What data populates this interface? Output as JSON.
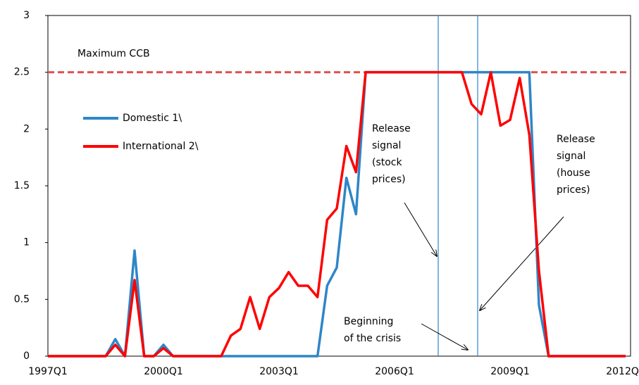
{
  "chart_data": {
    "type": "line",
    "categories": [
      "1997Q1",
      null,
      null,
      null,
      null,
      null,
      null,
      null,
      null,
      null,
      null,
      null,
      "2000Q1",
      null,
      null,
      null,
      null,
      null,
      null,
      null,
      null,
      null,
      null,
      null,
      "2003Q1",
      null,
      null,
      null,
      null,
      null,
      null,
      null,
      null,
      null,
      null,
      null,
      "2006Q1",
      null,
      null,
      null,
      null,
      null,
      null,
      null,
      null,
      null,
      null,
      null,
      "2009Q1",
      null,
      null,
      null,
      null,
      null,
      null,
      null,
      null,
      null,
      null,
      null,
      "2012Q1"
    ],
    "series": [
      {
        "name": "Domestic 1\\",
        "color": "#2e86c8",
        "values": [
          0,
          0,
          0,
          0,
          0,
          0,
          0,
          0.15,
          0,
          0.93,
          0,
          0,
          0.1,
          0,
          0,
          0,
          0,
          0,
          0,
          0,
          0,
          0,
          0,
          0,
          0,
          0,
          0,
          0,
          0,
          0.62,
          0.78,
          1.57,
          1.25,
          2.5,
          2.5,
          2.5,
          2.5,
          2.5,
          2.5,
          2.5,
          2.5,
          2.5,
          2.5,
          2.5,
          2.5,
          2.5,
          2.5,
          2.5,
          2.5,
          2.5,
          2.5,
          0.45,
          0,
          0,
          0,
          0,
          0,
          0,
          0,
          0,
          0
        ]
      },
      {
        "name": "International 2\\",
        "color": "#ff0000",
        "values": [
          0,
          0,
          0,
          0,
          0,
          0,
          0,
          0.1,
          0,
          0.67,
          0,
          0,
          0.07,
          0,
          0,
          0,
          0,
          0,
          0,
          0.18,
          0.24,
          0.52,
          0.24,
          0.52,
          0.6,
          0.74,
          0.62,
          0.62,
          0.52,
          1.2,
          1.3,
          1.85,
          1.62,
          2.5,
          2.5,
          2.5,
          2.5,
          2.5,
          2.5,
          2.5,
          2.5,
          2.5,
          2.5,
          2.5,
          2.22,
          2.13,
          2.5,
          2.03,
          2.08,
          2.45,
          1.95,
          0.75,
          0,
          0,
          0,
          0,
          0,
          0,
          0,
          0,
          0
        ]
      }
    ],
    "ylim": [
      0,
      3
    ],
    "yticks": [
      0,
      0.5,
      1,
      1.5,
      2,
      2.5,
      3
    ],
    "legend": "center-left",
    "reference_line": {
      "value": 2.5,
      "label": "Maximum CCB",
      "color": "#e05050"
    },
    "annotations": [
      {
        "lines": [
          "Release",
          "signal",
          "(stock",
          "prices)"
        ]
      },
      {
        "lines": [
          "Release",
          "signal",
          "(house",
          "prices)"
        ]
      },
      {
        "lines": [
          "Beginning",
          "of the crisis"
        ]
      }
    ]
  }
}
